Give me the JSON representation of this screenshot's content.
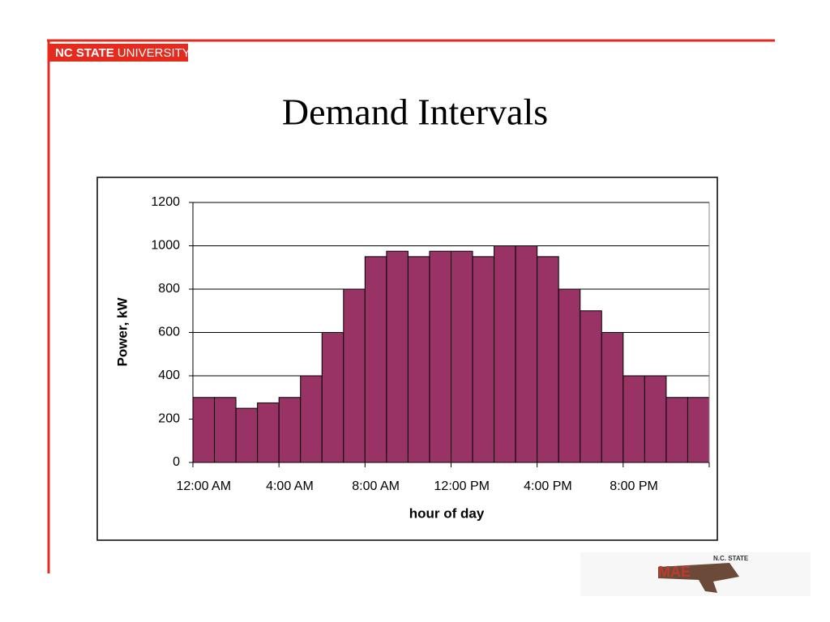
{
  "header": {
    "logo_bold": "NC STATE",
    "logo_rest": "UNIVERSITY"
  },
  "footer": {
    "logo_text": "N.C. STATE",
    "logo_mark": "MAE"
  },
  "chart_data": {
    "type": "bar",
    "title": "Demand Intervals",
    "x_label": "hour of day",
    "y_label": "Power, kW",
    "categories": [
      "12:00 AM",
      null,
      null,
      null,
      "4:00 AM",
      null,
      null,
      null,
      "8:00 AM",
      null,
      null,
      null,
      "12:00 PM",
      null,
      null,
      null,
      "4:00 PM",
      null,
      null,
      null,
      "8:00 PM",
      null,
      null,
      null
    ],
    "values": [
      300,
      300,
      250,
      275,
      300,
      400,
      600,
      800,
      950,
      975,
      950,
      975,
      975,
      950,
      1000,
      1000,
      950,
      800,
      700,
      600,
      400,
      400,
      300,
      300
    ],
    "color": "#993366",
    "ylim": [
      0,
      1200
    ],
    "yticks": [
      0,
      200,
      400,
      600,
      800,
      1000,
      1200
    ],
    "grid": true
  }
}
